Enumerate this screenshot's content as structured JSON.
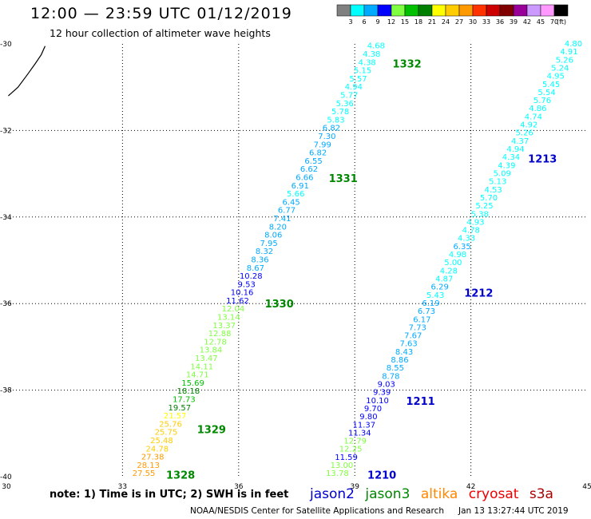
{
  "header": {
    "title": "12:00 — 23:59 UTC 01/12/2019",
    "subtitle": "12 hour collection of altimeter wave heights"
  },
  "legend": {
    "bins": [
      {
        "label": "3",
        "color": "#808080"
      },
      {
        "label": "6",
        "color": "#00ffff"
      },
      {
        "label": "9",
        "color": "#00aaff"
      },
      {
        "label": "12",
        "color": "#0000ff"
      },
      {
        "label": "15",
        "color": "#80ff40"
      },
      {
        "label": "18",
        "color": "#00c000"
      },
      {
        "label": "21",
        "color": "#008000"
      },
      {
        "label": "24",
        "color": "#ffff00"
      },
      {
        "label": "27",
        "color": "#ffcc00"
      },
      {
        "label": "30",
        "color": "#ff9900"
      },
      {
        "label": "33",
        "color": "#ff3300"
      },
      {
        "label": "36",
        "color": "#cc0000"
      },
      {
        "label": "39",
        "color": "#800000"
      },
      {
        "label": "42",
        "color": "#990099"
      },
      {
        "label": "45",
        "color": "#cc99ff"
      },
      {
        "label": "70",
        "color": "#ff99ff"
      },
      {
        "label": "",
        "color": "#000000"
      }
    ],
    "unit": "(ft)"
  },
  "map": {
    "lon_min": 30,
    "lon_max": 45,
    "lat_min": -40,
    "lat_max": -30,
    "lon_ticks": [
      "30",
      "33",
      "36",
      "39",
      "42",
      "45"
    ],
    "lat_ticks": [
      "-30",
      "-32",
      "-34",
      "-36",
      "-38",
      "-40"
    ],
    "coastline": [
      [
        30.05,
        -31.2
      ],
      [
        30.3,
        -31.0
      ],
      [
        30.55,
        -30.7
      ],
      [
        30.75,
        -30.45
      ],
      [
        30.9,
        -30.25
      ],
      [
        31.0,
        -30.05
      ]
    ]
  },
  "tracks": [
    {
      "satellite": "jason3",
      "pass_labels": [
        {
          "text": "1328",
          "lat": -39.95,
          "lon": 34.5
        },
        {
          "text": "1329",
          "lat": -38.9,
          "lon": 35.3
        },
        {
          "text": "1330",
          "lat": -36.0,
          "lon": 37.05
        },
        {
          "text": "1331",
          "lat": -33.1,
          "lon": 38.7
        },
        {
          "text": "1332",
          "lat": -30.45,
          "lon": 40.35
        }
      ],
      "start": {
        "lat": -39.93,
        "lon": 33.55
      },
      "end": {
        "lat": -30.05,
        "lon": 39.55
      },
      "values": [
        "27.55",
        "28.13",
        "27.38",
        "24.78",
        "25.48",
        "25.75",
        "25.76",
        "21.57",
        "19.57",
        "17.73",
        "18.18",
        "15.69",
        "14.71",
        "14.11",
        "13.47",
        "13.84",
        "12.78",
        "12.88",
        "13.37",
        "13.14",
        "12.04",
        "11.62",
        "10.16",
        "9.53",
        "10.28",
        "8.67",
        "8.36",
        "8.32",
        "7.95",
        "8.06",
        "8.20",
        "7.41",
        "6.77",
        "6.45",
        "5.66",
        "6.91",
        "6.66",
        "6.62",
        "6.55",
        "6.82",
        "7.99",
        "7.30",
        "6.82",
        "5.83",
        "5.78",
        "5.36",
        "5.77",
        "4.94",
        "5.57",
        "5.15",
        "4.38",
        "4.38",
        "4.68"
      ]
    },
    {
      "satellite": "jason2",
      "pass_labels": [
        {
          "text": "1210",
          "lat": -39.95,
          "lon": 39.7
        },
        {
          "text": "1211",
          "lat": -38.25,
          "lon": 40.7
        },
        {
          "text": "1212",
          "lat": -35.75,
          "lon": 42.2
        },
        {
          "text": "1213",
          "lat": -32.65,
          "lon": 43.85
        }
      ],
      "start": {
        "lat": -39.93,
        "lon": 38.55
      },
      "end": {
        "lat": -30.0,
        "lon": 44.65
      },
      "values": [
        "13.78",
        "13.00",
        "11.59",
        "12.25",
        "12.79",
        "11.34",
        "11.37",
        "9.80",
        "9.70",
        "10.10",
        "9.39",
        "9.03",
        "8.78",
        "8.55",
        "8.86",
        "8.43",
        "7.63",
        "7.67",
        "7.73",
        "6.17",
        "6.73",
        "6.19",
        "5.43",
        "6.29",
        "4.87",
        "4.28",
        "5.00",
        "4.98",
        "6.35",
        "4.33",
        "4.78",
        "4.93",
        "5.38",
        "5.25",
        "5.70",
        "4.53",
        "5.13",
        "5.09",
        "4.39",
        "4.34",
        "4.94",
        "4.37",
        "5.26",
        "4.92",
        "4.74",
        "4.86",
        "5.76",
        "5.54",
        "5.45",
        "4.95",
        "5.24",
        "5.26",
        "4.91",
        "4.80"
      ]
    }
  ],
  "note": "note:  1) Time is in UTC;  2) SWH is in feet",
  "satellites": [
    {
      "name": "jason2",
      "color": "#0000cc"
    },
    {
      "name": "jason3",
      "color": "#008800"
    },
    {
      "name": "altika",
      "color": "#ff8800"
    },
    {
      "name": "cryosat",
      "color": "#ee0000"
    },
    {
      "name": "s3a",
      "color": "#aa0000"
    }
  ],
  "footer": {
    "credit": "NOAA/NESDIS Center for Satellite Applications and Research",
    "timestamp": "Jan 13 13:27:44 UTC 2019"
  }
}
